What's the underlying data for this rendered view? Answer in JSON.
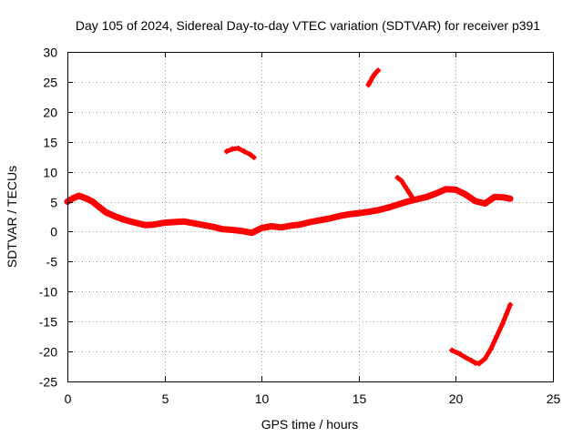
{
  "chart_data": {
    "type": "scatter",
    "title": "Day 105 of 2024, Sidereal Day-to-day VTEC variation (SDTVAR) for receiver p391",
    "xlabel": "GPS time / hours",
    "ylabel": "SDTVAR / TECUs",
    "xlim": [
      0,
      25
    ],
    "ylim": [
      -25,
      30
    ],
    "xticks": [
      "0",
      "5",
      "10",
      "15",
      "20",
      "25"
    ],
    "yticks": [
      "30",
      "25",
      "20",
      "15",
      "10",
      "5",
      "0",
      "-5",
      "-10",
      "-15",
      "-20",
      "-25"
    ],
    "grid": true,
    "series": [
      {
        "name": "main-band",
        "color": "#ff0000",
        "x": [
          0,
          0.3,
          0.6,
          1.0,
          1.3,
          1.6,
          2.0,
          2.5,
          3.0,
          3.5,
          4.0,
          4.5,
          5.0,
          5.5,
          6.0,
          6.5,
          7.0,
          7.5,
          8.0,
          8.5,
          9.0,
          9.5,
          10.0,
          10.5,
          11.0,
          11.5,
          12.0,
          12.5,
          13.0,
          13.5,
          14.0,
          14.5,
          15.0,
          15.5,
          16.0,
          16.5,
          17.0,
          17.5,
          18.0,
          18.5,
          19.0,
          19.5,
          20.0,
          20.5,
          21.0,
          21.5,
          22.0,
          22.5,
          22.8
        ],
        "y": [
          5.0,
          5.6,
          6.0,
          5.5,
          5.0,
          4.2,
          3.2,
          2.5,
          1.9,
          1.5,
          1.1,
          1.2,
          1.5,
          1.6,
          1.7,
          1.4,
          1.1,
          0.8,
          0.4,
          0.3,
          0.1,
          -0.2,
          0.6,
          0.9,
          0.7,
          1.0,
          1.2,
          1.6,
          1.9,
          2.2,
          2.6,
          2.9,
          3.1,
          3.3,
          3.6,
          4.0,
          4.5,
          5.0,
          5.4,
          5.8,
          6.4,
          7.1,
          7.0,
          6.2,
          5.1,
          4.7,
          5.8,
          5.7,
          5.5
        ],
        "width": 7
      },
      {
        "name": "segment-8.5h",
        "color": "#ff0000",
        "x": [
          8.2,
          8.5,
          8.8,
          9.1,
          9.4,
          9.6
        ],
        "y": [
          13.4,
          13.8,
          13.9,
          13.4,
          12.9,
          12.4
        ],
        "width": 5
      },
      {
        "name": "segment-15.7h",
        "color": "#ff0000",
        "x": [
          15.5,
          15.6,
          15.7,
          15.8,
          15.9,
          16.0
        ],
        "y": [
          24.5,
          25.1,
          25.7,
          26.2,
          26.6,
          26.9
        ],
        "width": 5
      },
      {
        "name": "segment-17.5h",
        "color": "#ff0000",
        "x": [
          17.0,
          17.2,
          17.4,
          17.6,
          17.8
        ],
        "y": [
          9.0,
          8.5,
          7.5,
          6.5,
          5.5
        ],
        "width": 5
      },
      {
        "name": "segment-20-23h",
        "color": "#ff0000",
        "x": [
          19.8,
          20.2,
          20.5,
          20.8,
          21.0,
          21.2,
          21.5,
          21.8,
          22.1,
          22.4,
          22.6,
          22.8
        ],
        "y": [
          -19.8,
          -20.4,
          -21.0,
          -21.5,
          -21.9,
          -22.0,
          -21.2,
          -19.6,
          -17.5,
          -15.4,
          -13.8,
          -12.2
        ],
        "width": 5
      }
    ]
  }
}
